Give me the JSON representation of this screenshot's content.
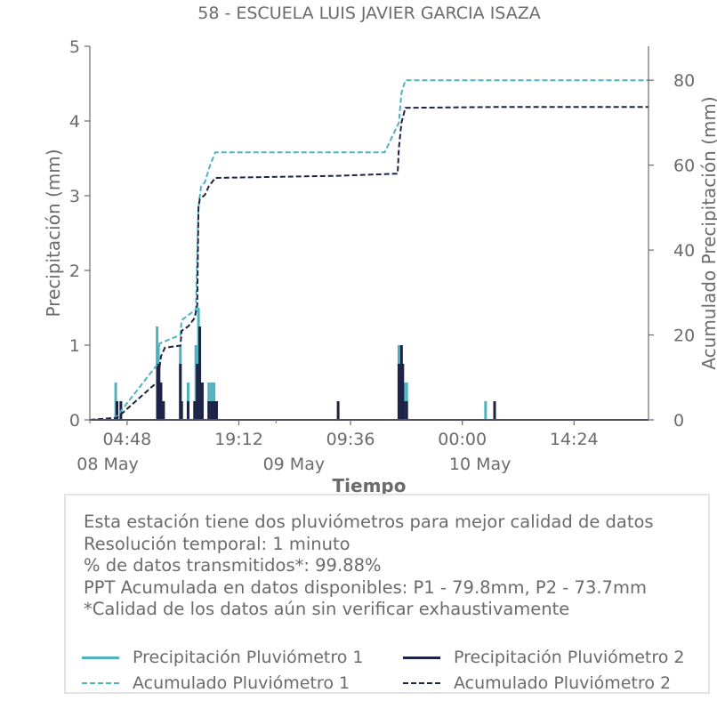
{
  "chart_data": {
    "type": "bar+line",
    "title": "58 - ESCUELA LUIS JAVIER GARCIA ISAZA",
    "xlabel": "Tiempo",
    "ylabel_left": "Precipitación (mm)",
    "ylabel_right": "Acumulado Precipitación (mm)",
    "ylim_left": [
      0,
      5
    ],
    "ylim_right": [
      0,
      88
    ],
    "yticks_left": [
      "0",
      "1",
      "2",
      "3",
      "4",
      "5"
    ],
    "yticks_right": [
      "0",
      "20",
      "40",
      "60",
      "80"
    ],
    "xlim": [
      "2024-05-08T00:00",
      "2024-05-11T00:00"
    ],
    "xticks": [
      {
        "t": "2024-05-08T04:48",
        "time": "04:48",
        "date": "08 May"
      },
      {
        "t": "2024-05-08T19:12",
        "time": "19:12",
        "date": ""
      },
      {
        "t": "2024-05-09T09:36",
        "time": "09:36",
        "date": "09 May"
      },
      {
        "t": "2024-05-10T00:00",
        "time": "00:00",
        "date": "10 May"
      },
      {
        "t": "2024-05-10T14:24",
        "time": "14:24",
        "date": ""
      }
    ],
    "date_labels": [
      {
        "t": "2024-05-08T00:00",
        "label": "08 May"
      },
      {
        "t": "2024-05-09T00:00",
        "label": "09 May"
      },
      {
        "t": "2024-05-10T00:00",
        "label": "10 May"
      }
    ],
    "grid": false,
    "series": [
      {
        "name": "Precipitación Pluviómetro 1",
        "kind": "bars",
        "axis": "left",
        "color": "#4fb3bf",
        "points": [
          [
            "2024-05-08T03:20",
            0.5
          ],
          [
            "2024-05-08T08:40",
            1.25
          ],
          [
            "2024-05-08T08:50",
            1.0
          ],
          [
            "2024-05-08T09:00",
            0.5
          ],
          [
            "2024-05-08T11:40",
            1.0
          ],
          [
            "2024-05-08T12:40",
            0.5
          ],
          [
            "2024-05-08T13:40",
            1.0
          ],
          [
            "2024-05-08T14:00",
            1.5
          ],
          [
            "2024-05-08T14:10",
            0.75
          ],
          [
            "2024-05-08T15:20",
            0.5
          ],
          [
            "2024-05-08T15:40",
            0.5
          ],
          [
            "2024-05-08T16:00",
            0.5
          ],
          [
            "2024-05-09T15:50",
            1.0
          ],
          [
            "2024-05-09T16:10",
            0.75
          ],
          [
            "2024-05-09T16:30",
            0.5
          ],
          [
            "2024-05-09T16:50",
            0.5
          ],
          [
            "2024-05-10T03:00",
            0.25
          ]
        ]
      },
      {
        "name": "Precipitación Pluviómetro 2",
        "kind": "bars",
        "axis": "left",
        "color": "#1c2347",
        "points": [
          [
            "2024-05-08T03:30",
            0.25
          ],
          [
            "2024-05-08T04:00",
            0.25
          ],
          [
            "2024-05-08T08:45",
            0.75
          ],
          [
            "2024-05-08T08:55",
            0.75
          ],
          [
            "2024-05-08T09:10",
            0.5
          ],
          [
            "2024-05-08T09:30",
            0.25
          ],
          [
            "2024-05-08T11:40",
            0.75
          ],
          [
            "2024-05-08T11:50",
            0.25
          ],
          [
            "2024-05-08T12:40",
            0.25
          ],
          [
            "2024-05-08T13:30",
            0.25
          ],
          [
            "2024-05-08T13:50",
            0.75
          ],
          [
            "2024-05-08T14:10",
            1.25
          ],
          [
            "2024-05-08T14:30",
            0.5
          ],
          [
            "2024-05-08T15:20",
            0.25
          ],
          [
            "2024-05-08T15:40",
            0.25
          ],
          [
            "2024-05-08T16:00",
            0.25
          ],
          [
            "2024-05-08T16:20",
            0.25
          ],
          [
            "2024-05-09T08:00",
            0.25
          ],
          [
            "2024-05-09T15:50",
            0.75
          ],
          [
            "2024-05-09T16:10",
            1.0
          ],
          [
            "2024-05-09T16:20",
            0.75
          ],
          [
            "2024-05-09T16:30",
            0.25
          ],
          [
            "2024-05-09T16:50",
            0.25
          ],
          [
            "2024-05-10T04:10",
            0.25
          ]
        ]
      },
      {
        "name": "Acumulado Pluviómetro 1",
        "kind": "step-line",
        "axis": "right",
        "color": "#4fb3bf",
        "dash": true,
        "points": [
          [
            "2024-05-08T00:00",
            0
          ],
          [
            "2024-05-08T03:20",
            0.5
          ],
          [
            "2024-05-08T08:40",
            13
          ],
          [
            "2024-05-08T09:00",
            18
          ],
          [
            "2024-05-08T11:40",
            20
          ],
          [
            "2024-05-08T11:50",
            23.5
          ],
          [
            "2024-05-08T13:40",
            26
          ],
          [
            "2024-05-08T14:00",
            50
          ],
          [
            "2024-05-08T14:20",
            55
          ],
          [
            "2024-05-08T14:50",
            56
          ],
          [
            "2024-05-08T15:30",
            60
          ],
          [
            "2024-05-08T16:10",
            63
          ],
          [
            "2024-05-09T14:00",
            63
          ],
          [
            "2024-05-09T15:50",
            70
          ],
          [
            "2024-05-09T16:10",
            77
          ],
          [
            "2024-05-09T16:40",
            80
          ],
          [
            "2024-05-10T03:00",
            80
          ],
          [
            "2024-05-10T03:10",
            80
          ],
          [
            "2024-05-10T23:59",
            80
          ]
        ]
      },
      {
        "name": "Acumulado Pluviómetro 2",
        "kind": "step-line",
        "axis": "right",
        "color": "#1c2347",
        "dash": true,
        "points": [
          [
            "2024-05-08T00:00",
            0
          ],
          [
            "2024-05-08T03:30",
            0.5
          ],
          [
            "2024-05-08T03:50",
            1
          ],
          [
            "2024-05-08T08:45",
            9
          ],
          [
            "2024-05-08T09:10",
            15
          ],
          [
            "2024-05-08T09:40",
            17
          ],
          [
            "2024-05-08T11:40",
            17.5
          ],
          [
            "2024-05-08T11:50",
            21
          ],
          [
            "2024-05-08T12:40",
            22
          ],
          [
            "2024-05-08T13:30",
            24
          ],
          [
            "2024-05-08T13:50",
            27
          ],
          [
            "2024-05-08T14:00",
            50
          ],
          [
            "2024-05-08T14:10",
            52
          ],
          [
            "2024-05-08T14:50",
            53
          ],
          [
            "2024-05-08T15:20",
            55
          ],
          [
            "2024-05-08T16:10",
            57
          ],
          [
            "2024-05-09T08:00",
            57.5
          ],
          [
            "2024-05-09T15:40",
            58
          ],
          [
            "2024-05-09T15:50",
            64
          ],
          [
            "2024-05-09T16:10",
            70
          ],
          [
            "2024-05-09T16:40",
            73.5
          ],
          [
            "2024-05-10T04:10",
            73.7
          ],
          [
            "2024-05-10T23:59",
            73.7
          ]
        ]
      }
    ]
  },
  "info": {
    "lines": [
      "Esta estación tiene dos pluviómetros para mejor calidad de datos",
      "Resolución temporal: 1 minuto",
      "% de datos transmitidos*: 99.88%",
      "PPT Acumulada en datos disponibles: P1 - 79.8mm, P2 - 73.7mm",
      "*Calidad de los datos aún sin verificar exhaustivamente"
    ]
  },
  "legend": {
    "items": [
      {
        "label": "Precipitación Pluviómetro 1",
        "color": "#4fb3bf",
        "style": "solid"
      },
      {
        "label": "Precipitación Pluviómetro 2",
        "color": "#1c2347",
        "style": "solid"
      },
      {
        "label": "Acumulado Pluviómetro 1",
        "color": "#4fb3bf",
        "style": "dashed"
      },
      {
        "label": "Acumulado Pluviómetro 2",
        "color": "#1c2347",
        "style": "dashed"
      }
    ]
  }
}
